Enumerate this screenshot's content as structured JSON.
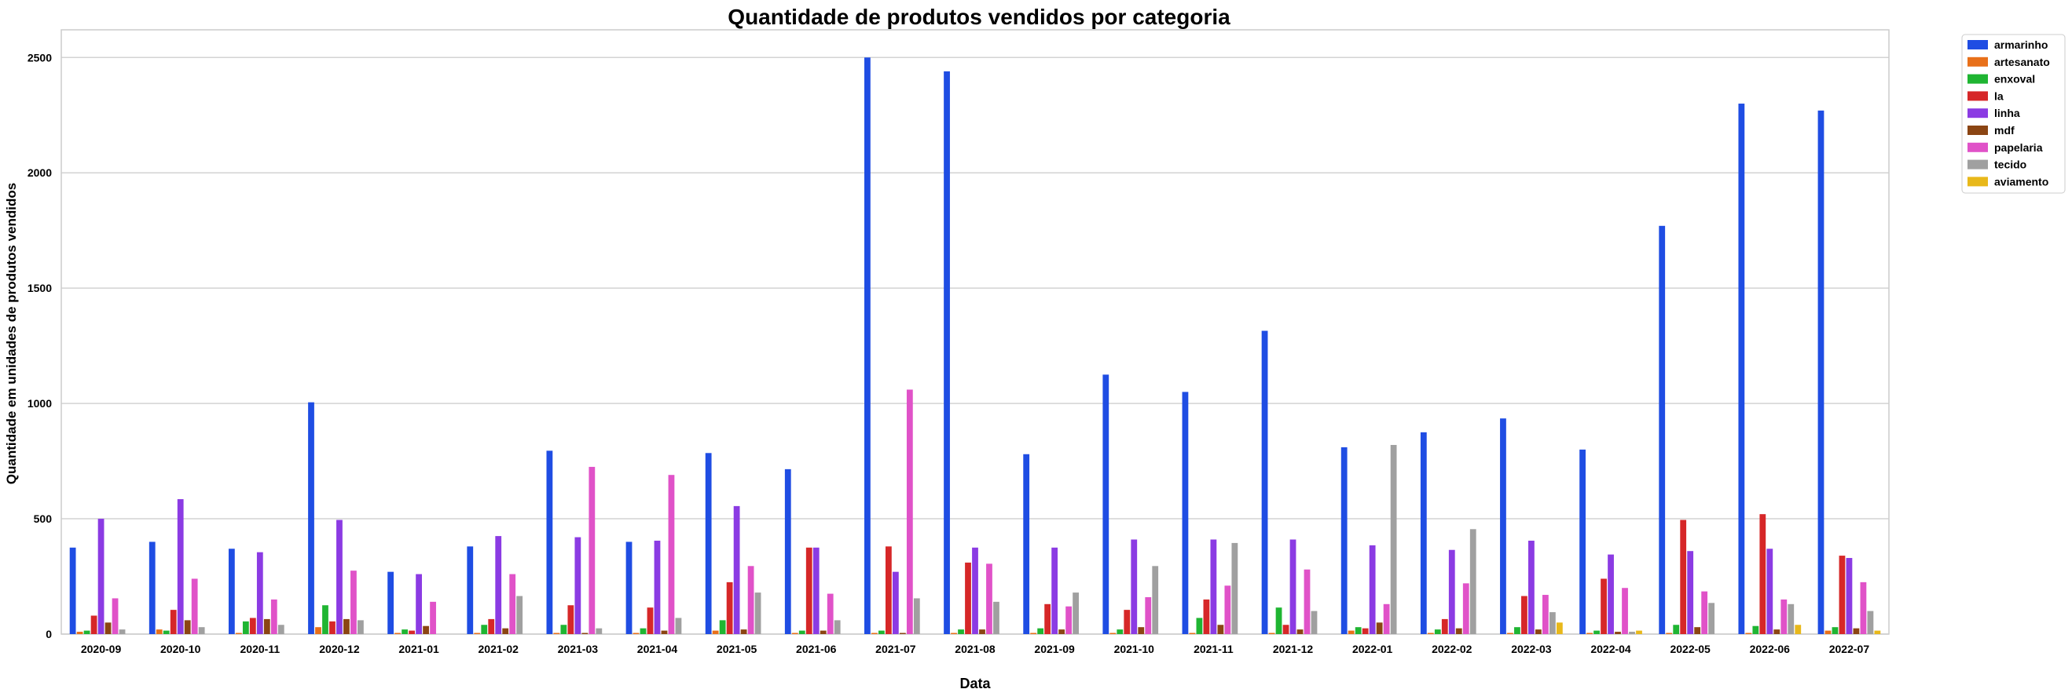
{
  "chart_data": {
    "type": "bar",
    "title": "Quantidade de produtos vendidos por categoria",
    "xlabel": "Data",
    "ylabel": "Quantidade em unidades de produtos vendidos",
    "ylim": [
      0,
      2620
    ],
    "yticks": [
      0,
      500,
      1000,
      1500,
      2000,
      2500
    ],
    "grid": true,
    "legend_position": "outside top-right",
    "categories": [
      "2020-09",
      "2020-10",
      "2020-11",
      "2020-12",
      "2021-01",
      "2021-02",
      "2021-03",
      "2021-04",
      "2021-05",
      "2021-06",
      "2021-07",
      "2021-08",
      "2021-09",
      "2021-10",
      "2021-11",
      "2021-12",
      "2022-01",
      "2022-02",
      "2022-03",
      "2022-04",
      "2022-05",
      "2022-06",
      "2022-07"
    ],
    "series": [
      {
        "name": "armarinho",
        "color": "#1f4de3",
        "values": [
          375,
          400,
          370,
          1005,
          270,
          380,
          795,
          400,
          785,
          715,
          2500,
          2440,
          780,
          1125,
          1050,
          1315,
          810,
          875,
          935,
          800,
          1770,
          2300,
          2270
        ]
      },
      {
        "name": "artesanato",
        "color": "#e8701a",
        "values": [
          10,
          20,
          5,
          30,
          5,
          5,
          5,
          5,
          15,
          5,
          5,
          5,
          5,
          5,
          5,
          5,
          15,
          5,
          5,
          5,
          5,
          5,
          15
        ]
      },
      {
        "name": "enxoval",
        "color": "#1fb532",
        "values": [
          15,
          15,
          55,
          125,
          20,
          40,
          40,
          25,
          60,
          15,
          15,
          20,
          25,
          20,
          70,
          115,
          30,
          20,
          30,
          15,
          40,
          35,
          30
        ]
      },
      {
        "name": "la",
        "color": "#d62728",
        "values": [
          80,
          105,
          70,
          55,
          15,
          65,
          125,
          115,
          225,
          375,
          380,
          310,
          130,
          105,
          150,
          40,
          25,
          65,
          165,
          240,
          495,
          520,
          340
        ]
      },
      {
        "name": "linha",
        "color": "#8b3be3",
        "values": [
          500,
          585,
          355,
          495,
          260,
          425,
          420,
          405,
          555,
          375,
          270,
          375,
          375,
          410,
          410,
          410,
          385,
          365,
          405,
          345,
          360,
          370,
          330
        ]
      },
      {
        "name": "mdf",
        "color": "#8b4513",
        "values": [
          50,
          60,
          65,
          65,
          35,
          25,
          5,
          15,
          20,
          15,
          5,
          20,
          20,
          30,
          40,
          20,
          50,
          25,
          20,
          10,
          30,
          20,
          25
        ]
      },
      {
        "name": "papelaria",
        "color": "#e052c8",
        "values": [
          155,
          240,
          150,
          275,
          140,
          260,
          725,
          690,
          295,
          175,
          1060,
          305,
          120,
          160,
          210,
          280,
          130,
          220,
          170,
          200,
          185,
          150,
          225
        ]
      },
      {
        "name": "tecido",
        "color": "#a0a0a0",
        "values": [
          20,
          30,
          40,
          60,
          0,
          165,
          25,
          70,
          180,
          60,
          155,
          140,
          180,
          295,
          395,
          100,
          820,
          455,
          95,
          10,
          135,
          130,
          100
        ]
      },
      {
        "name": "aviamento",
        "color": "#e8b81a",
        "values": [
          0,
          0,
          0,
          0,
          0,
          0,
          0,
          0,
          0,
          0,
          0,
          0,
          0,
          0,
          0,
          0,
          0,
          0,
          50,
          15,
          0,
          40,
          15
        ]
      }
    ]
  }
}
